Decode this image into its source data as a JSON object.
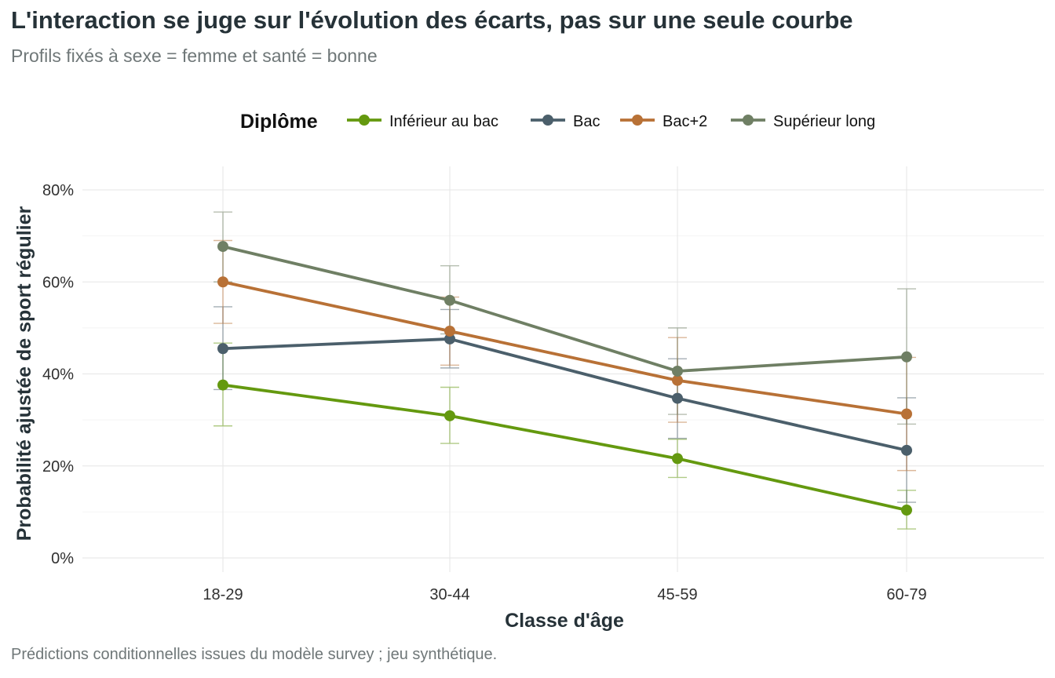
{
  "title": "L'interaction se juge sur l'évolution des écarts, pas sur une seule courbe",
  "subtitle": "Profils fixés à sexe = femme et santé = bonne",
  "caption": "Prédictions conditionnelles issues du modèle survey ; jeu synthétique.",
  "chart_data": {
    "type": "line",
    "title": "L'interaction se juge sur l'évolution des écarts, pas sur une seule courbe",
    "subtitle": "Profils fixés à sexe = femme et santé = bonne",
    "xlabel": "Classe d'âge",
    "ylabel": "Probabilité ajustée de sport régulier",
    "categories": [
      "18-29",
      "30-44",
      "45-59",
      "60-79"
    ],
    "ylim": [
      0,
      0.82
    ],
    "yticks": [
      0,
      0.2,
      0.4,
      0.6,
      0.8
    ],
    "ytick_labels": [
      "0%",
      "20%",
      "40%",
      "60%",
      "80%"
    ],
    "grid": true,
    "error_bars": true,
    "legend": {
      "title": "Diplôme",
      "position": "top"
    },
    "series": [
      {
        "name": "Inférieur au bac",
        "color": "#64990f",
        "values": [
          0.376,
          0.309,
          0.216,
          0.104
        ],
        "lower": [
          0.287,
          0.249,
          0.175,
          0.063
        ],
        "upper": [
          0.467,
          0.371,
          0.258,
          0.147
        ]
      },
      {
        "name": "Bac",
        "color": "#4b5f6b",
        "values": [
          0.455,
          0.476,
          0.347,
          0.234
        ],
        "lower": [
          0.366,
          0.413,
          0.26,
          0.121
        ],
        "upper": [
          0.546,
          0.54,
          0.433,
          0.348
        ]
      },
      {
        "name": "Bac+2",
        "color": "#b87136",
        "values": [
          0.6,
          0.493,
          0.386,
          0.313
        ],
        "lower": [
          0.51,
          0.419,
          0.295,
          0.19
        ],
        "upper": [
          0.69,
          0.567,
          0.479,
          0.436
        ]
      },
      {
        "name": "Supérieur long",
        "color": "#6f7f64",
        "values": [
          0.677,
          0.56,
          0.406,
          0.437
        ],
        "lower": [
          0.6,
          0.487,
          0.312,
          0.291
        ],
        "upper": [
          0.752,
          0.635,
          0.5,
          0.585
        ]
      }
    ]
  }
}
